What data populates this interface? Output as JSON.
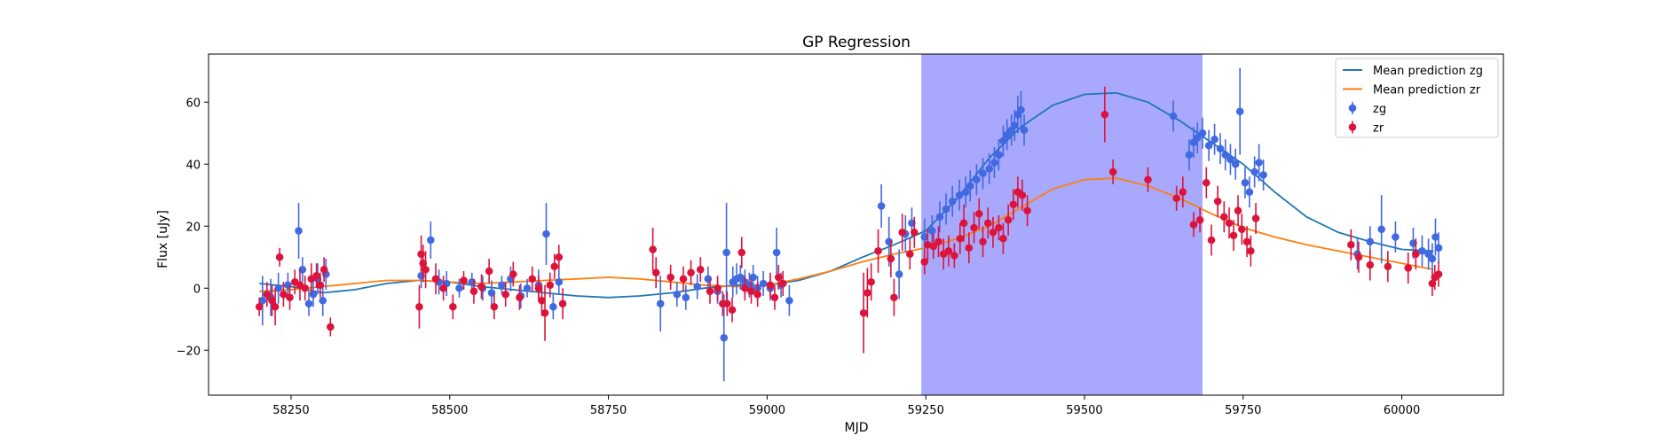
{
  "chart_data": {
    "type": "scatter",
    "title": "GP Regression",
    "xlabel": "MJD",
    "ylabel": "Flux [uJy]",
    "xlim": [
      58120,
      60160
    ],
    "ylim": [
      -34.5,
      75.5
    ],
    "xticks": [
      58250,
      58500,
      58750,
      59000,
      59250,
      59500,
      59750,
      60000
    ],
    "yticks": [
      -20,
      0,
      20,
      40,
      60
    ],
    "grid": false,
    "legend_position": "top-right",
    "highlight_span": {
      "x_start": 59243,
      "x_end": 59686,
      "color": "#a8a8fd"
    },
    "colors": {
      "zg_line": "#1f77b4",
      "zr_line": "#ff7f0e",
      "zg_points": "#4169e1",
      "zr_points": "#dc143c"
    },
    "legend": [
      "Mean prediction zg",
      "Mean prediction zr",
      "zg",
      "zr"
    ],
    "lines": [
      {
        "name": "Mean prediction zg",
        "color": "#1f77b4",
        "x": [
          58200,
          58250,
          58300,
          58350,
          58400,
          58450,
          58500,
          58550,
          58600,
          58650,
          58700,
          58750,
          58800,
          58850,
          58900,
          58950,
          59000,
          59050,
          59100,
          59150,
          59200,
          59250,
          59300,
          59350,
          59400,
          59450,
          59500,
          59550,
          59600,
          59650,
          59700,
          59750,
          59800,
          59850,
          59900,
          59950,
          60000,
          60050
        ],
        "y": [
          1.5,
          0.5,
          -1.5,
          -0.5,
          1.5,
          2.5,
          2.0,
          0.5,
          -0.5,
          -1.5,
          -2.5,
          -3.0,
          -2.5,
          -1.5,
          0.0,
          1.0,
          1.0,
          2.5,
          5.5,
          10.0,
          14.0,
          18.5,
          29.0,
          42.0,
          52.0,
          59.0,
          62.5,
          63.0,
          60.0,
          54.0,
          47.0,
          40.0,
          31.0,
          23.0,
          18.0,
          15.0,
          12.5,
          12.0
        ]
      },
      {
        "name": "Mean prediction zr",
        "color": "#ff7f0e",
        "x": [
          58200,
          58250,
          58300,
          58350,
          58400,
          58450,
          58500,
          58550,
          58600,
          58650,
          58700,
          58750,
          58800,
          58850,
          58900,
          58950,
          59000,
          59050,
          59100,
          59150,
          59200,
          59250,
          59300,
          59350,
          59400,
          59450,
          59500,
          59550,
          59600,
          59650,
          59700,
          59750,
          59800,
          59850,
          59900,
          59950,
          60000,
          60050
        ],
        "y": [
          -1.0,
          -0.5,
          0.5,
          1.5,
          2.5,
          2.5,
          2.0,
          1.5,
          2.0,
          2.5,
          3.0,
          3.5,
          3.0,
          2.0,
          1.0,
          0.5,
          1.0,
          3.0,
          5.5,
          8.5,
          11.0,
          13.0,
          16.0,
          20.0,
          26.0,
          32.0,
          35.0,
          35.5,
          33.0,
          29.0,
          24.0,
          19.5,
          16.5,
          14.0,
          12.0,
          10.0,
          8.0,
          6.0
        ]
      }
    ],
    "series": [
      {
        "name": "zg",
        "color": "#4169e1",
        "points": [
          [
            58205,
            -4,
            8
          ],
          [
            58218,
            -3,
            6
          ],
          [
            58230,
            0,
            5
          ],
          [
            58245,
            1,
            4
          ],
          [
            58262,
            18.5,
            9
          ],
          [
            58268,
            6,
            4
          ],
          [
            58278,
            -5,
            4
          ],
          [
            58285,
            -2,
            4
          ],
          [
            58292,
            3,
            5
          ],
          [
            58300,
            -4,
            5
          ],
          [
            58305,
            4.5,
            5
          ],
          [
            58455,
            4,
            4
          ],
          [
            58470,
            15.5,
            6
          ],
          [
            58483,
            2,
            4
          ],
          [
            58495,
            1.5,
            4
          ],
          [
            58515,
            0,
            3
          ],
          [
            58535,
            2,
            3
          ],
          [
            58552,
            0,
            4
          ],
          [
            58566,
            -1.5,
            4
          ],
          [
            58582,
            1,
            3
          ],
          [
            58596,
            3,
            4
          ],
          [
            58612,
            -2.5,
            4
          ],
          [
            58622,
            0,
            3
          ],
          [
            58640,
            1,
            5
          ],
          [
            58652,
            17.5,
            10
          ],
          [
            58663,
            -6,
            4
          ],
          [
            58672,
            2,
            4
          ],
          [
            58832,
            -5,
            9
          ],
          [
            58858,
            -2,
            4
          ],
          [
            58872,
            -3,
            4
          ],
          [
            58890,
            0.5,
            4
          ],
          [
            58907,
            3,
            4
          ],
          [
            58922,
            -1,
            4
          ],
          [
            58932,
            -16,
            14
          ],
          [
            58936,
            11.5,
            16
          ],
          [
            58946,
            2,
            5
          ],
          [
            58952,
            3,
            5
          ],
          [
            58958,
            3.5,
            4
          ],
          [
            58965,
            2,
            4
          ],
          [
            58972,
            1,
            4
          ],
          [
            58978,
            3.5,
            4
          ],
          [
            58985,
            0,
            4
          ],
          [
            58994,
            1.5,
            4
          ],
          [
            59005,
            0,
            4
          ],
          [
            59015,
            11.5,
            8
          ],
          [
            59022,
            1,
            4
          ],
          [
            59035,
            -4,
            5
          ],
          [
            59180,
            26.5,
            7
          ],
          [
            59192,
            15,
            8
          ],
          [
            59208,
            4.5,
            8
          ],
          [
            59218,
            17.5,
            6
          ],
          [
            59228,
            21,
            5
          ],
          [
            59248,
            16.5,
            6
          ],
          [
            59260,
            18.5,
            5
          ],
          [
            59272,
            23,
            5
          ],
          [
            59282,
            25.5,
            5
          ],
          [
            59292,
            28,
            5
          ],
          [
            59303,
            30,
            5
          ],
          [
            59313,
            31,
            5
          ],
          [
            59320,
            33,
            5
          ],
          [
            59330,
            35,
            5
          ],
          [
            59340,
            37,
            5
          ],
          [
            59350,
            38.5,
            5
          ],
          [
            59358,
            40.5,
            5
          ],
          [
            59365,
            43,
            5
          ],
          [
            59372,
            47.5,
            5
          ],
          [
            59378,
            49.5,
            5
          ],
          [
            59385,
            51,
            5
          ],
          [
            59390,
            52.5,
            5
          ],
          [
            59395,
            56,
            6
          ],
          [
            59400,
            57.5,
            6
          ],
          [
            59405,
            51,
            5
          ],
          [
            59640,
            55.5,
            5
          ],
          [
            59665,
            43,
            5
          ],
          [
            59672,
            47,
            5
          ],
          [
            59678,
            48.5,
            5
          ],
          [
            59686,
            50,
            5
          ],
          [
            59696,
            46,
            5
          ],
          [
            59705,
            48,
            5
          ],
          [
            59714,
            45,
            5
          ],
          [
            59722,
            43,
            5
          ],
          [
            59730,
            41.5,
            5
          ],
          [
            59738,
            40,
            5
          ],
          [
            59745,
            57,
            14
          ],
          [
            59753,
            34,
            5
          ],
          [
            59760,
            31,
            5
          ],
          [
            59768,
            37.5,
            5
          ],
          [
            59775,
            40.5,
            6
          ],
          [
            59782,
            36.5,
            5
          ],
          [
            59930,
            11,
            5
          ],
          [
            59950,
            15,
            5
          ],
          [
            59968,
            19,
            11
          ],
          [
            59990,
            16.5,
            5
          ],
          [
            60018,
            14.5,
            5
          ],
          [
            60032,
            12,
            5
          ],
          [
            60042,
            11,
            5
          ],
          [
            60048,
            9.5,
            5
          ],
          [
            60053,
            16.5,
            6
          ],
          [
            60058,
            13,
            5
          ]
        ]
      },
      {
        "name": "zr",
        "color": "#dc143c",
        "points": [
          [
            58200,
            -6,
            3
          ],
          [
            58212,
            -2,
            4
          ],
          [
            58220,
            -4,
            5
          ],
          [
            58225,
            -6,
            6
          ],
          [
            58232,
            10,
            3
          ],
          [
            58238,
            -2,
            4
          ],
          [
            58248,
            -3,
            4
          ],
          [
            58256,
            2,
            4
          ],
          [
            58264,
            1,
            5
          ],
          [
            58272,
            0,
            4
          ],
          [
            58282,
            3,
            5
          ],
          [
            58290,
            4,
            4
          ],
          [
            58296,
            1,
            4
          ],
          [
            58302,
            6,
            4
          ],
          [
            58312,
            -12.5,
            3
          ],
          [
            58452,
            -6,
            7
          ],
          [
            58455,
            11,
            6
          ],
          [
            58458,
            8,
            6
          ],
          [
            58462,
            6,
            6
          ],
          [
            58478,
            3,
            5
          ],
          [
            58490,
            0,
            4
          ],
          [
            58505,
            -6,
            4
          ],
          [
            58522,
            2.5,
            3
          ],
          [
            58538,
            -1,
            4
          ],
          [
            58550,
            0.5,
            4
          ],
          [
            58562,
            5.5,
            4
          ],
          [
            58570,
            -6,
            4
          ],
          [
            58588,
            -2,
            4
          ],
          [
            58600,
            4.5,
            4
          ],
          [
            58610,
            -3,
            4
          ],
          [
            58630,
            3,
            4
          ],
          [
            58640,
            0,
            4
          ],
          [
            58645,
            -4,
            5
          ],
          [
            58650,
            -8,
            9
          ],
          [
            58658,
            1,
            4
          ],
          [
            58665,
            7,
            4
          ],
          [
            58672,
            10,
            4
          ],
          [
            58678,
            -5,
            5
          ],
          [
            58820,
            12.5,
            7
          ],
          [
            58825,
            5,
            5
          ],
          [
            58848,
            3.5,
            4
          ],
          [
            58868,
            3,
            4
          ],
          [
            58880,
            5,
            4
          ],
          [
            58895,
            6,
            4
          ],
          [
            58910,
            -1,
            4
          ],
          [
            58922,
            0,
            4
          ],
          [
            58930,
            -5,
            4
          ],
          [
            58937,
            -5,
            4
          ],
          [
            58945,
            -7,
            4
          ],
          [
            58960,
            11.5,
            5
          ],
          [
            58965,
            0,
            4
          ],
          [
            58975,
            -1,
            4
          ],
          [
            58985,
            -2,
            4
          ],
          [
            59005,
            1,
            4
          ],
          [
            59012,
            -3,
            4
          ],
          [
            59018,
            3.5,
            4
          ],
          [
            59025,
            1.5,
            4
          ],
          [
            59152,
            -8,
            13
          ],
          [
            59158,
            -1.5,
            8
          ],
          [
            59164,
            2,
            6
          ],
          [
            59175,
            12,
            7
          ],
          [
            59195,
            9.5,
            6
          ],
          [
            59200,
            -3,
            6
          ],
          [
            59213,
            18,
            6
          ],
          [
            59225,
            11,
            5
          ],
          [
            59232,
            18,
            5
          ],
          [
            59248,
            8.5,
            4
          ],
          [
            59253,
            14,
            5
          ],
          [
            59262,
            13.5,
            4
          ],
          [
            59270,
            15,
            5
          ],
          [
            59278,
            11,
            5
          ],
          [
            59286,
            12,
            5
          ],
          [
            59295,
            10.5,
            4
          ],
          [
            59304,
            16,
            5
          ],
          [
            59310,
            21,
            6
          ],
          [
            59318,
            13,
            5
          ],
          [
            59326,
            19.5,
            5
          ],
          [
            59334,
            24,
            5
          ],
          [
            59340,
            15,
            5
          ],
          [
            59348,
            21,
            5
          ],
          [
            59356,
            18,
            5
          ],
          [
            59365,
            19.5,
            4
          ],
          [
            59372,
            16,
            5
          ],
          [
            59380,
            22,
            5
          ],
          [
            59388,
            27,
            5
          ],
          [
            59395,
            31,
            5
          ],
          [
            59402,
            30,
            5
          ],
          [
            59410,
            25,
            5
          ],
          [
            59532,
            56,
            9
          ],
          [
            59545,
            37.5,
            4
          ],
          [
            59600,
            35,
            4
          ],
          [
            59645,
            29,
            4
          ],
          [
            59655,
            31,
            5
          ],
          [
            59672,
            20.5,
            4
          ],
          [
            59682,
            22,
            4
          ],
          [
            59692,
            34,
            5
          ],
          [
            59700,
            15.5,
            5
          ],
          [
            59710,
            28,
            5
          ],
          [
            59720,
            23,
            5
          ],
          [
            59728,
            21,
            5
          ],
          [
            59735,
            17,
            5
          ],
          [
            59742,
            25,
            5
          ],
          [
            59748,
            19,
            5
          ],
          [
            59756,
            15,
            5
          ],
          [
            59762,
            12,
            5
          ],
          [
            59770,
            22.5,
            5
          ],
          [
            59920,
            14,
            5
          ],
          [
            59932,
            10,
            5
          ],
          [
            59950,
            7.5,
            5
          ],
          [
            59978,
            7,
            5
          ],
          [
            60010,
            6.5,
            5
          ],
          [
            60022,
            11,
            5
          ],
          [
            60048,
            1.5,
            4
          ],
          [
            60052,
            3.5,
            4
          ],
          [
            60058,
            4.5,
            4
          ]
        ]
      }
    ]
  }
}
